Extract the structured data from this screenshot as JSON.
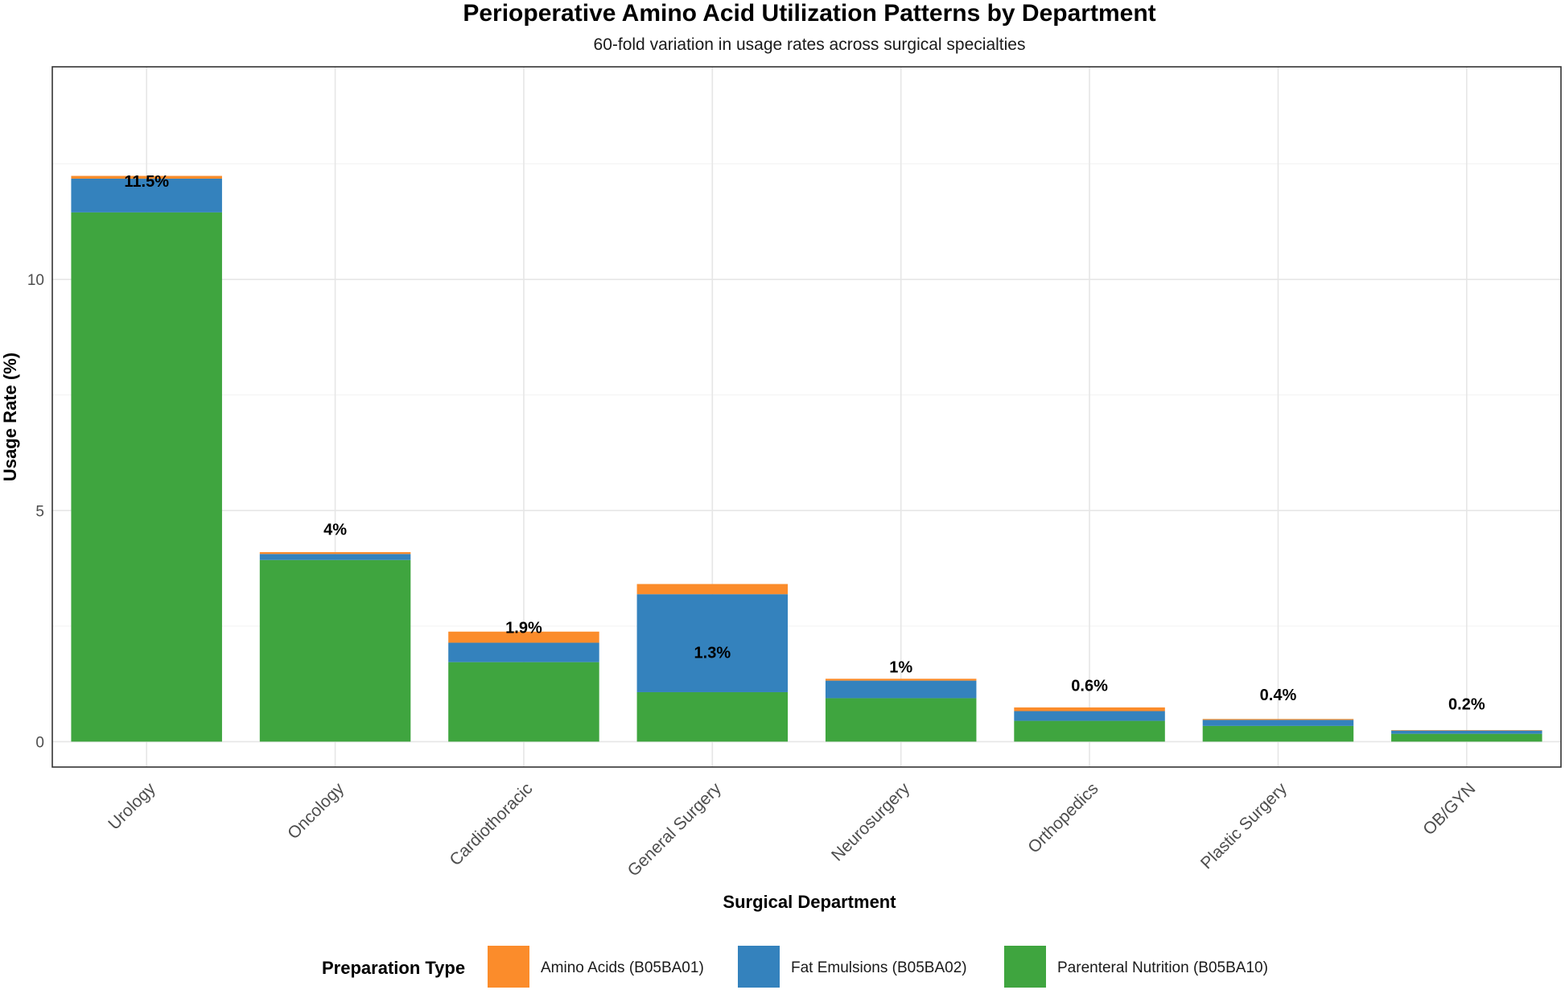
{
  "chart_data": {
    "type": "bar",
    "stacked": true,
    "title": "Perioperative Amino Acid Utilization Patterns by Department",
    "subtitle": "60-fold variation in usage rates across surgical specialties",
    "xlabel": "Surgical Department",
    "ylabel": "Usage Rate (%)",
    "ylim": [
      -0.55,
      14.6
    ],
    "yticks": [
      0,
      5,
      10
    ],
    "grid": true,
    "legend_position": "bottom",
    "legend_title": "Preparation Type",
    "categories": [
      "Urology",
      "Oncology",
      "Cardiothoracic",
      "General Surgery",
      "Neurosurgery",
      "Orthopedics",
      "Plastic Surgery",
      "OB/GYN"
    ],
    "series": [
      {
        "name": "Parenteral Nutrition (B05BA10)",
        "color": "#3fa53f",
        "values": [
          11.45,
          3.93,
          1.72,
          1.07,
          0.94,
          0.45,
          0.34,
          0.17
        ]
      },
      {
        "name": "Fat Emulsions (B05BA02)",
        "color": "#3482bd",
        "values": [
          0.73,
          0.13,
          0.42,
          2.12,
          0.38,
          0.21,
          0.13,
          0.07
        ]
      },
      {
        "name": "Amino Acids (B05BA01)",
        "color": "#fb8c2b",
        "values": [
          0.06,
          0.04,
          0.24,
          0.22,
          0.04,
          0.08,
          0.02,
          0.01
        ]
      }
    ],
    "legend_order": [
      "Amino Acids (B05BA01)",
      "Fat Emulsions (B05BA02)",
      "Parenteral Nutrition (B05BA10)"
    ],
    "annotations": [
      {
        "category": "Urology",
        "text": "11.5%",
        "y": 12.13
      },
      {
        "category": "Oncology",
        "text": "4%",
        "y": 4.6
      },
      {
        "category": "Cardiothoracic",
        "text": "1.9%",
        "y": 2.47
      },
      {
        "category": "General Surgery",
        "text": "1.3%",
        "y": 1.93
      },
      {
        "category": "Neurosurgery",
        "text": "1%",
        "y": 1.62
      },
      {
        "category": "Orthopedics",
        "text": "0.6%",
        "y": 1.22
      },
      {
        "category": "Plastic Surgery",
        "text": "0.4%",
        "y": 1.02
      },
      {
        "category": "OB/GYN",
        "text": "0.2%",
        "y": 0.82
      }
    ]
  }
}
